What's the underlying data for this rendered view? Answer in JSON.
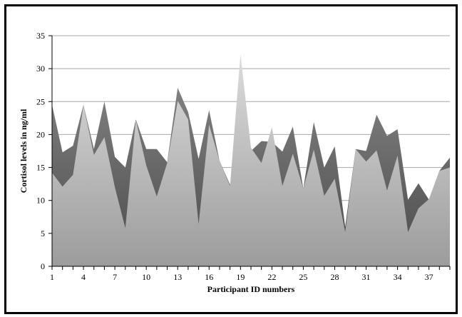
{
  "chart_data": {
    "type": "area",
    "xlabel": "Participant ID numbers",
    "ylabel": "Cortisol levels in ng/ml",
    "ylim": [
      0,
      35
    ],
    "yticks": [
      0,
      5,
      10,
      15,
      20,
      25,
      30,
      35
    ],
    "xlim": [
      1,
      39
    ],
    "xticks": [
      1,
      4,
      7,
      10,
      13,
      16,
      19,
      22,
      25,
      28,
      31,
      34,
      37
    ],
    "grid": true,
    "legend": "none",
    "x": [
      1,
      2,
      3,
      4,
      5,
      6,
      7,
      8,
      9,
      10,
      11,
      12,
      13,
      14,
      15,
      16,
      17,
      18,
      19,
      20,
      21,
      22,
      23,
      24,
      25,
      26,
      27,
      28,
      29,
      30,
      31,
      32,
      33,
      34,
      35,
      36,
      37,
      38,
      39
    ],
    "series": [
      {
        "color": "#6b6b6b",
        "values": [
          24.5,
          17.3,
          18.3,
          24.5,
          17.8,
          25.0,
          16.6,
          15.0,
          22.3,
          17.8,
          17.8,
          15.8,
          27.1,
          23.4,
          16.3,
          23.7,
          16.0,
          12.4,
          15.5,
          17.5,
          19.0,
          18.9,
          17.4,
          21.2,
          11.8,
          21.9,
          15.0,
          18.2,
          6.0,
          17.8,
          17.5,
          23.0,
          19.8,
          20.8,
          10.1,
          12.6,
          10.1,
          14.5,
          16.5
        ]
      },
      {
        "color": "#c4c4c4",
        "values": [
          14.2,
          12.1,
          13.9,
          24.4,
          16.9,
          19.6,
          12.0,
          5.8,
          22.2,
          15.3,
          10.6,
          15.7,
          25.1,
          22.3,
          6.4,
          21.5,
          16.0,
          12.2,
          32.2,
          18.0,
          15.7,
          21.1,
          12.2,
          17.1,
          11.8,
          17.7,
          10.7,
          13.3,
          5.2,
          17.8,
          15.9,
          17.6,
          11.5,
          16.8,
          5.2,
          8.8,
          10.2,
          14.5,
          15.0
        ]
      }
    ]
  }
}
